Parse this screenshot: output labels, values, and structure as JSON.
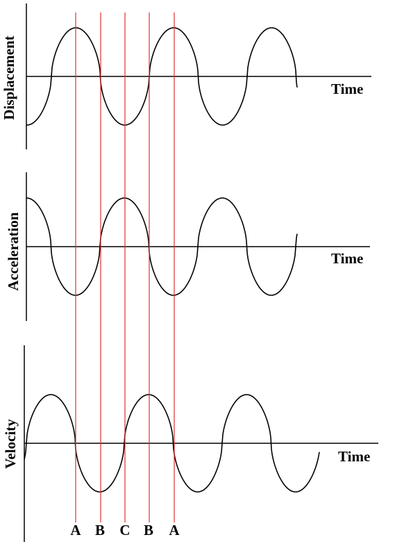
{
  "panels": [
    {
      "id": "displacement",
      "ylabel": "Displacement",
      "xlabel": "Time"
    },
    {
      "id": "acceleration",
      "ylabel": "Acceleration",
      "xlabel": "Time"
    },
    {
      "id": "velocity",
      "ylabel": "Velocity",
      "xlabel": "Time"
    }
  ],
  "markers": [
    "A",
    "B",
    "C",
    "B",
    "A"
  ],
  "colors": {
    "curve": "#000000",
    "axis": "#000000",
    "marker": "#e03030"
  }
}
